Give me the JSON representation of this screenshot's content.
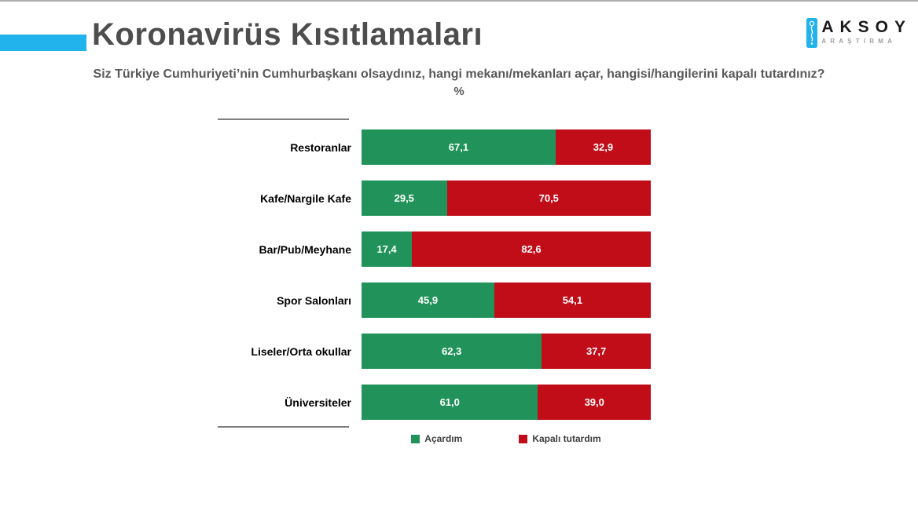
{
  "page": {
    "title": "Koronavirüs Kısıtlamaları",
    "subtitle": "Siz Türkiye Cumhuriyeti’nin Cumhurbaşkanı olsaydınız, hangi mekanı/mekanları açar, hangisi/hangilerini kapalı tutardınız?",
    "unit_label": "%"
  },
  "logo": {
    "wordmark": "AKSOY",
    "tagline": "ARAŞTIRMA"
  },
  "colors": {
    "accent_blue": "#22b2ec",
    "open_green": "#21935a",
    "closed_red": "#c00d18",
    "title_gray": "#4d4d4d",
    "subtitle_gray": "#595959"
  },
  "chart_data": {
    "type": "bar",
    "orientation": "horizontal-stacked",
    "title": "Koronavirüs Kısıtlamaları",
    "xlabel": "%",
    "xlim": [
      0,
      100
    ],
    "grid": false,
    "legend_position": "bottom",
    "decimal_separator": ",",
    "categories": [
      "Restoranlar",
      "Kafe/Nargile Kafe",
      "Bar/Pub/Meyhane",
      "Spor Salonları",
      "Liseler/Orta okullar",
      "Üniversiteler"
    ],
    "series": [
      {
        "name": "Açardım",
        "color": "#21935a",
        "values": [
          67.1,
          29.5,
          17.4,
          45.9,
          62.3,
          61.0
        ]
      },
      {
        "name": "Kapalı tutardım",
        "color": "#c00d18",
        "values": [
          32.9,
          70.5,
          82.6,
          54.1,
          37.7,
          39.0
        ]
      }
    ]
  }
}
